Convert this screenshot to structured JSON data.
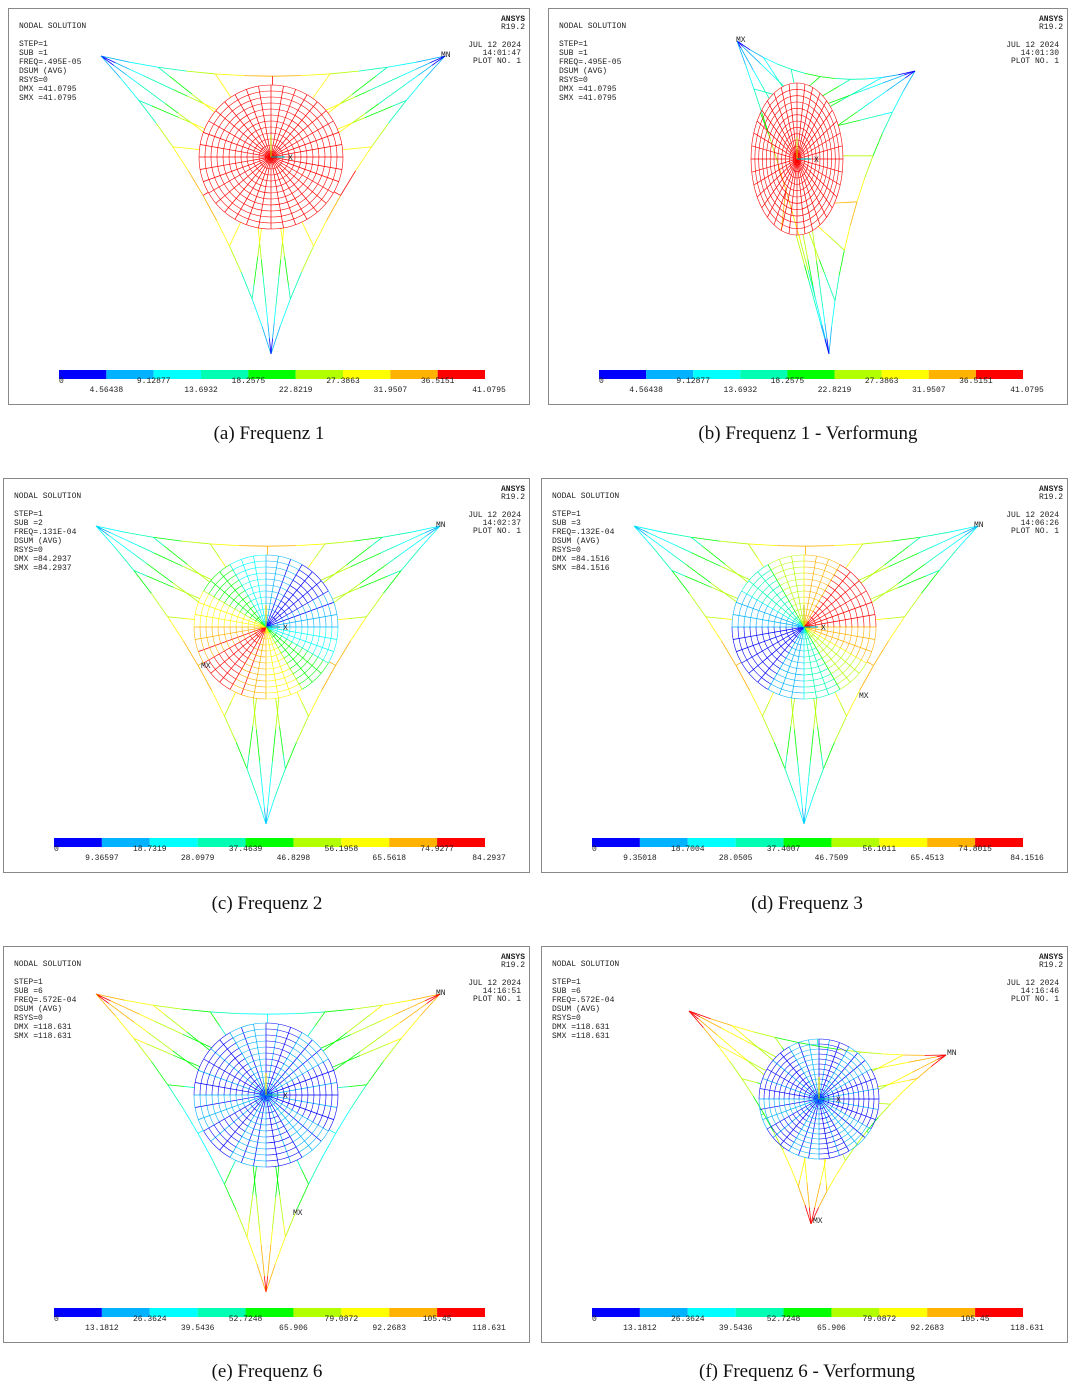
{
  "figure": {
    "panels": [
      {
        "title": "NODAL SOLUTION",
        "brand": "ANSYS",
        "version": "R19.2",
        "info": [
          "STEP=1",
          "SUB =1",
          "FREQ=.495E-05",
          "DSUM   (AVG)",
          "RSYS=0",
          "DMX =41.0795",
          "SMX =41.0795"
        ],
        "date": "JUL 12 2024",
        "time": "14:01:47",
        "plot": "PLOT NO.   1",
        "axis": "X",
        "markers": [
          "MN"
        ],
        "legend": [
          "0",
          "4.56438",
          "9.12877",
          "13.6932",
          "18.2575",
          "22.8219",
          "27.3863",
          "31.9507",
          "36.5151",
          "41.0795"
        ],
        "caption": "(a) Frequenz 1"
      },
      {
        "title": "NODAL SOLUTION",
        "brand": "ANSYS",
        "version": "R19.2",
        "info": [
          "STEP=1",
          "SUB =1",
          "FREQ=.495E-05",
          "DSUM   (AVG)",
          "RSYS=0",
          "DMX =41.0795",
          "SMX =41.0795"
        ],
        "date": "JUL 12 2024",
        "time": "14:01:30",
        "plot": "PLOT NO.   1",
        "axis": "X",
        "markers": [
          "MX"
        ],
        "legend": [
          "0",
          "4.56438",
          "9.12877",
          "13.6932",
          "18.2575",
          "22.8219",
          "27.3863",
          "31.9507",
          "36.5151",
          "41.0795"
        ],
        "caption": "(b) Frequenz 1 - Verformung"
      },
      {
        "title": "NODAL SOLUTION",
        "brand": "ANSYS",
        "version": "R19.2",
        "info": [
          "STEP=1",
          "SUB =2",
          "FREQ=.131E-04",
          "DSUM   (AVG)",
          "RSYS=0",
          "DMX =84.2937",
          "SMX =84.2937"
        ],
        "date": "JUL 12 2024",
        "time": "14:02:37",
        "plot": "PLOT NO.   1",
        "axis": "X",
        "markers": [
          "MN",
          "MX"
        ],
        "legend": [
          "0",
          "9.36597",
          "18.7319",
          "28.0979",
          "37.4639",
          "46.8298",
          "56.1958",
          "65.5618",
          "74.9277",
          "84.2937"
        ],
        "caption": "(c) Frequenz 2"
      },
      {
        "title": "NODAL SOLUTION",
        "brand": "ANSYS",
        "version": "R19.2",
        "info": [
          "STEP=1",
          "SUB =3",
          "FREQ=.132E-04",
          "DSUM   (AVG)",
          "RSYS=0",
          "DMX =84.1516",
          "SMX =84.1516"
        ],
        "date": "JUL 12 2024",
        "time": "14:06:26",
        "plot": "PLOT NO.   1",
        "axis": "X",
        "markers": [
          "MN",
          "MX"
        ],
        "legend": [
          "0",
          "9.35018",
          "18.7004",
          "28.0505",
          "37.4007",
          "46.7509",
          "56.1011",
          "65.4513",
          "74.8015",
          "84.1516"
        ],
        "caption": "(d) Frequenz 3"
      },
      {
        "title": "NODAL SOLUTION",
        "brand": "ANSYS",
        "version": "R19.2",
        "info": [
          "STEP=1",
          "SUB =6",
          "FREQ=.572E-04",
          "DSUM   (AVG)",
          "RSYS=0",
          "DMX =118.631",
          "SMX =118.631"
        ],
        "date": "JUL 12 2024",
        "time": "14:16:51",
        "plot": "PLOT NO.   1",
        "axis": "X",
        "markers": [
          "MN",
          "MX"
        ],
        "legend": [
          "0",
          "13.1812",
          "26.3624",
          "39.5436",
          "52.7248",
          "65.906",
          "79.0872",
          "92.2683",
          "105.45",
          "118.631"
        ],
        "caption": "(e) Frequenz 6"
      },
      {
        "title": "NODAL SOLUTION",
        "brand": "ANSYS",
        "version": "R19.2",
        "info": [
          "STEP=1",
          "SUB =6",
          "FREQ=.572E-04",
          "DSUM   (AVG)",
          "RSYS=0",
          "DMX =118.631",
          "SMX =118.631"
        ],
        "date": "JUL 12 2024",
        "time": "14:16:46",
        "plot": "PLOT NO.   1",
        "axis": "X",
        "markers": [
          "MN",
          "MX"
        ],
        "legend": [
          "0",
          "13.1812",
          "26.3624",
          "39.5436",
          "52.7248",
          "65.906",
          "79.0872",
          "92.2683",
          "105.45",
          "118.631"
        ],
        "caption": "(f) Frequenz 6 - Verformung"
      }
    ]
  }
}
